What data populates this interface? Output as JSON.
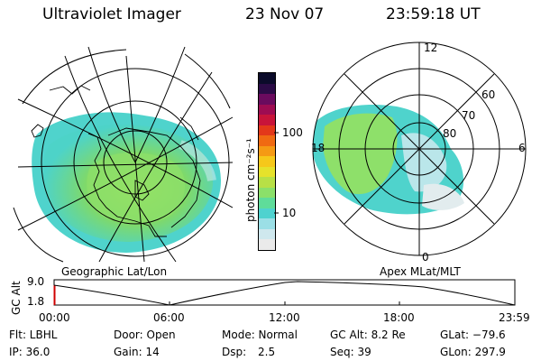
{
  "header": {
    "title": "Ultraviolet Imager",
    "date": "23 Nov 07",
    "time": "23:59:18 UT"
  },
  "left_panel": {
    "caption": "Geographic Lat/Lon"
  },
  "right_panel": {
    "caption": "Apex MLat/MLT",
    "mlt_labels": {
      "top": "12",
      "left": "18",
      "right": "6",
      "bottom": "0"
    },
    "lat_labels": [
      "60",
      "70",
      "80"
    ]
  },
  "colorbar": {
    "unit_label": "photon cm⁻²s⁻¹",
    "tick_labels": [
      "100",
      "10"
    ],
    "colors": [
      "#eaeaea",
      "#cfe8ee",
      "#9bdfe6",
      "#4fd2cf",
      "#5fdc9a",
      "#8be06a",
      "#b8e046",
      "#e6e22b",
      "#f6c81a",
      "#f59a14",
      "#f06a12",
      "#e3381a",
      "#c8143a",
      "#9e0c52",
      "#6a0b5e",
      "#2b0b46",
      "#0b0b2a"
    ]
  },
  "altitude_plot": {
    "ylabel": "GC Alt",
    "ymax_label": "9.0",
    "ymin_label": "1.8",
    "x_ticks": [
      "00:00",
      "06:00",
      "12:00",
      "18:00",
      "23:59"
    ]
  },
  "info": {
    "row1": {
      "flt": "Flt: LBHL",
      "door": "Door: Open",
      "mode": "Mode: Normal",
      "gc_alt": "GC Alt: 8.2 Re",
      "glat": "GLat: −79.6"
    },
    "row2": {
      "ip": "IP: 36.0",
      "gain": "Gain: 14",
      "dsp_label": "Dsp:",
      "dsp_value": "2.5",
      "seq": "Seq: 39",
      "glon": "GLon: 297.9"
    }
  }
}
